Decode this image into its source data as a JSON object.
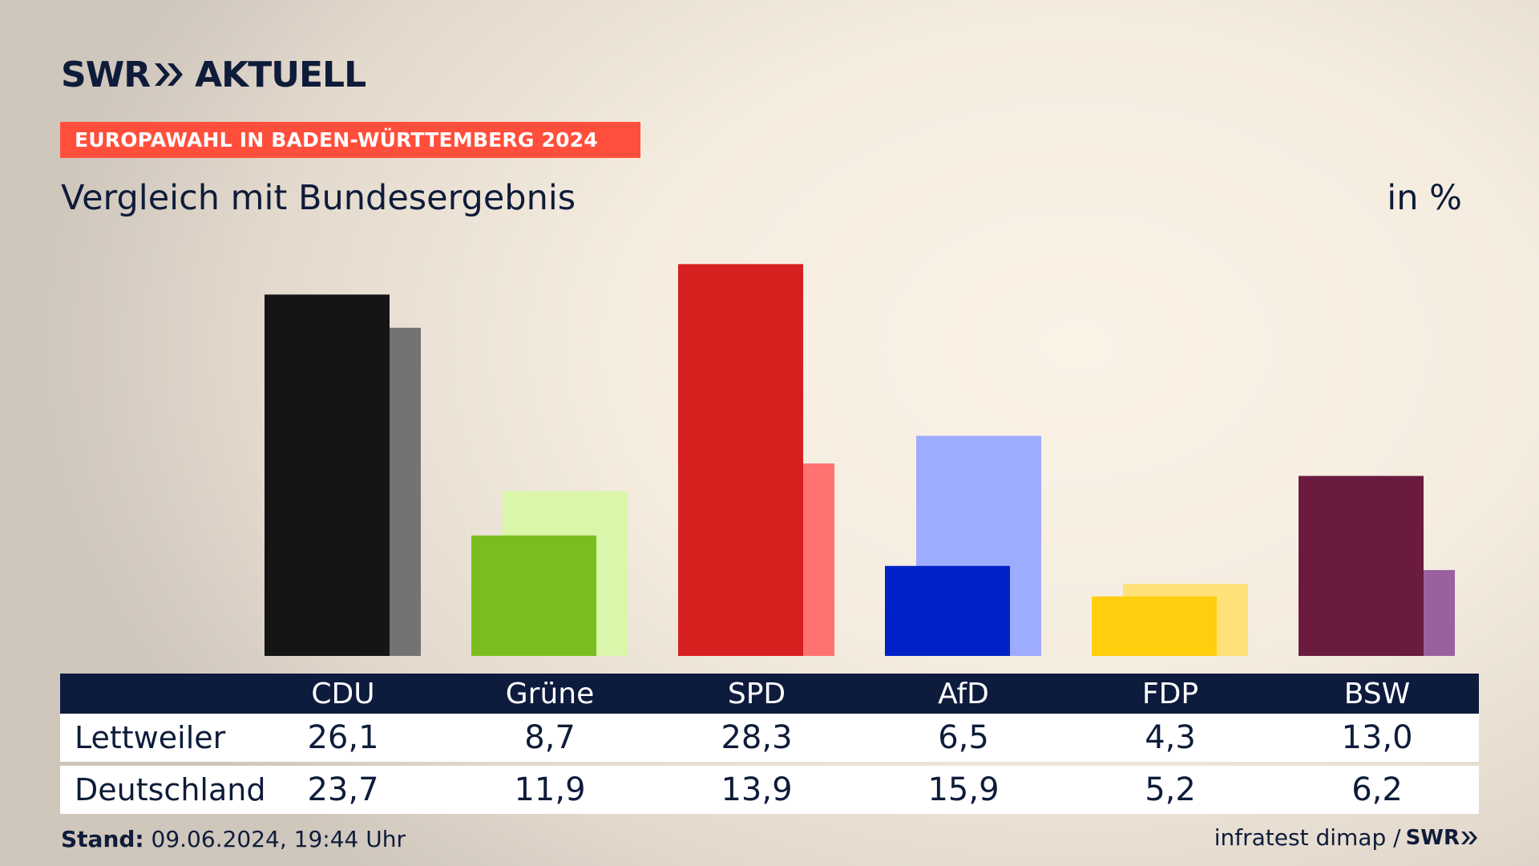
{
  "brand": {
    "name": "SWR",
    "section": "AKTUELL"
  },
  "banner": "EUROPAWAHL IN BADEN-WÜRTTEMBERG 2024",
  "subtitle": "Vergleich mit Bundesergebnis",
  "unit": "in %",
  "table": {
    "row_labels": [
      "Lettweiler",
      "Deutschland"
    ]
  },
  "footer": {
    "stand_label": "Stand:",
    "stand_value": "09.06.2024, 19:44 Uhr",
    "source": "infratest dimap /",
    "source_brand": "SWR"
  },
  "chart_data": {
    "type": "bar",
    "categories": [
      "CDU",
      "Grüne",
      "SPD",
      "AfD",
      "FDP",
      "BSW"
    ],
    "series": [
      {
        "name": "Lettweiler",
        "values": [
          26.1,
          8.7,
          28.3,
          6.5,
          4.3,
          13.0
        ],
        "labels": [
          "26,1",
          "8,7",
          "28,3",
          "6,5",
          "4,3",
          "13,0"
        ],
        "colors": [
          "#151515",
          "#7abd1e",
          "#d71f1f",
          "#0022c8",
          "#ffcf0d",
          "#6b1a40"
        ]
      },
      {
        "name": "Deutschland",
        "values": [
          23.7,
          11.9,
          13.9,
          15.9,
          5.2,
          6.2
        ],
        "labels": [
          "23,7",
          "11,9",
          "13,9",
          "15,9",
          "5,2",
          "6,2"
        ],
        "colors": [
          "#737373",
          "#d9f6aa",
          "#ff7270",
          "#9eacff",
          "#ffe17a",
          "#9a60a0"
        ]
      }
    ],
    "ylim": [
      0,
      30
    ]
  }
}
